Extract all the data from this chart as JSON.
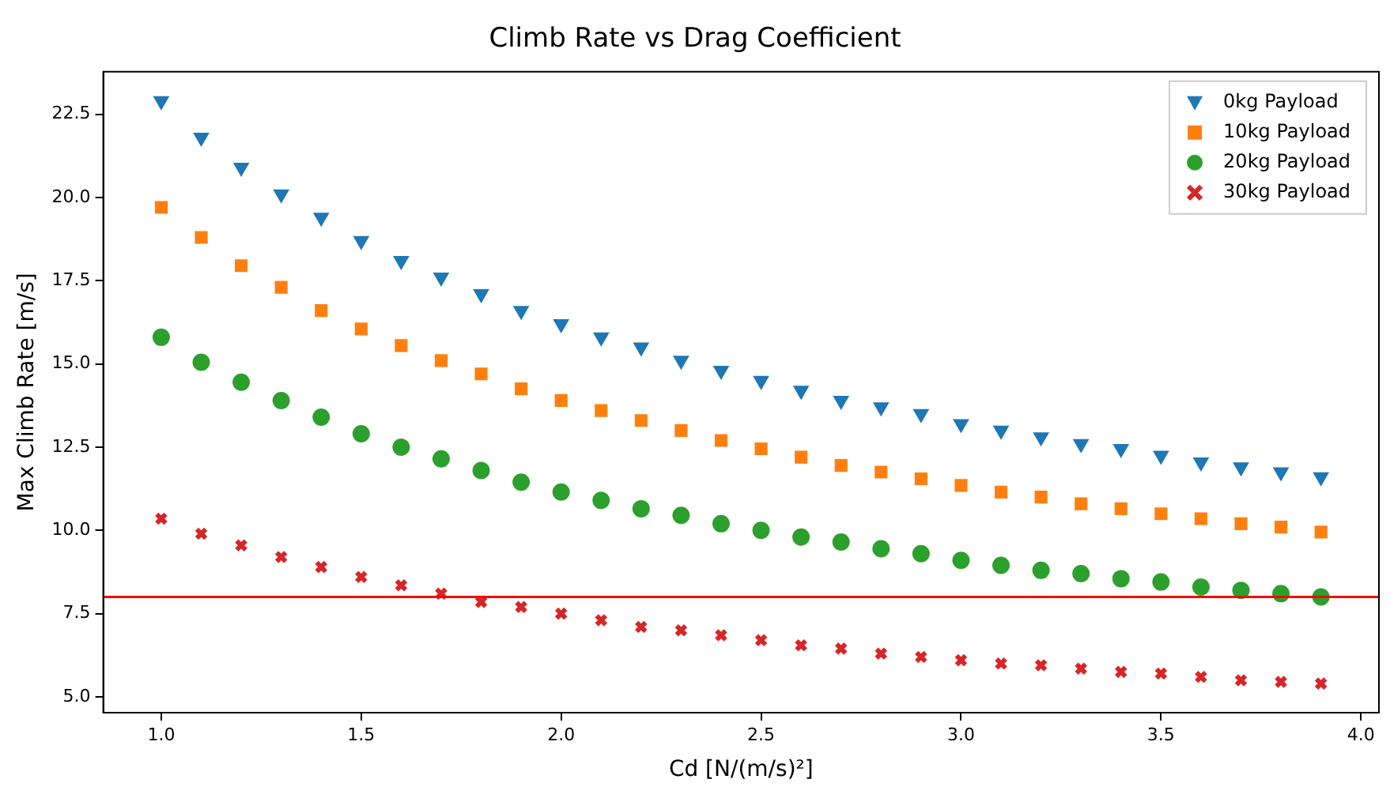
{
  "chart_data": {
    "type": "scatter",
    "title": "Climb Rate vs Drag Coefficient",
    "xlabel": "Cd [N/(m/s)²]",
    "ylabel": "Max Climb Rate [m/s]",
    "x": [
      1.0,
      1.1,
      1.2,
      1.3,
      1.4,
      1.5,
      1.6,
      1.7,
      1.8,
      1.9,
      2.0,
      2.1,
      2.2,
      2.3,
      2.4,
      2.5,
      2.6,
      2.7,
      2.8,
      2.9,
      3.0,
      3.1,
      3.2,
      3.3,
      3.4,
      3.5,
      3.6,
      3.7,
      3.8,
      3.9
    ],
    "series": [
      {
        "name": "0kg Payload",
        "color": "#1f77b4",
        "marker": "triangle",
        "values": [
          22.9,
          21.8,
          20.9,
          20.1,
          19.4,
          18.7,
          18.1,
          17.6,
          17.1,
          16.6,
          16.2,
          15.8,
          15.5,
          15.1,
          14.8,
          14.5,
          14.2,
          13.9,
          13.7,
          13.5,
          13.2,
          13.0,
          12.8,
          12.6,
          12.45,
          12.25,
          12.05,
          11.9,
          11.75,
          11.6
        ]
      },
      {
        "name": "10kg Payload",
        "color": "#ff7f0e",
        "marker": "square",
        "values": [
          19.7,
          18.8,
          17.95,
          17.3,
          16.6,
          16.05,
          15.55,
          15.1,
          14.7,
          14.25,
          13.9,
          13.6,
          13.3,
          13.0,
          12.7,
          12.45,
          12.2,
          11.95,
          11.75,
          11.55,
          11.35,
          11.15,
          11.0,
          10.8,
          10.65,
          10.5,
          10.35,
          10.2,
          10.1,
          9.95
        ]
      },
      {
        "name": "20kg Payload",
        "color": "#2ca02c",
        "marker": "circle",
        "values": [
          15.8,
          15.05,
          14.45,
          13.9,
          13.4,
          12.9,
          12.5,
          12.15,
          11.8,
          11.45,
          11.15,
          10.9,
          10.65,
          10.45,
          10.2,
          10.0,
          9.8,
          9.65,
          9.45,
          9.3,
          9.1,
          8.95,
          8.8,
          8.7,
          8.55,
          8.45,
          8.3,
          8.2,
          8.1,
          8.0
        ]
      },
      {
        "name": "30kg Payload",
        "color": "#d62728",
        "marker": "cross",
        "values": [
          10.35,
          9.9,
          9.55,
          9.2,
          8.9,
          8.6,
          8.35,
          8.1,
          7.85,
          7.7,
          7.5,
          7.3,
          7.1,
          7.0,
          6.85,
          6.7,
          6.55,
          6.45,
          6.3,
          6.2,
          6.1,
          6.0,
          5.95,
          5.85,
          5.75,
          5.7,
          5.6,
          5.5,
          5.45,
          5.4
        ]
      }
    ],
    "xlim": [
      0.855,
      4.045
    ],
    "xticks": [
      {
        "value": 1.0,
        "label": "1.0"
      },
      {
        "value": 1.5,
        "label": "1.5"
      },
      {
        "value": 2.0,
        "label": "2.0"
      },
      {
        "value": 2.5,
        "label": "2.5"
      },
      {
        "value": 3.0,
        "label": "3.0"
      },
      {
        "value": 3.5,
        "label": "3.5"
      },
      {
        "value": 4.0,
        "label": "4.0"
      }
    ],
    "ylim": [
      4.525,
      23.775
    ],
    "yticks": [
      {
        "value": 5.0,
        "label": "5.0"
      },
      7.5,
      {
        "value": 10.0,
        "label": "10.0"
      },
      12.5,
      {
        "value": 15.0,
        "label": "15.0"
      },
      17.5,
      {
        "value": 20.0,
        "label": "20.0"
      },
      22.5
    ],
    "ref_lines": [
      {
        "axis": "y",
        "value": 8,
        "color": "#ff0000"
      }
    ],
    "grid": false,
    "legend": "top right"
  }
}
